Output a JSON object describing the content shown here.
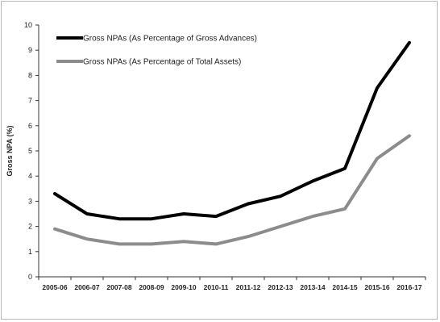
{
  "chart_data": {
    "type": "line",
    "title": "",
    "xlabel": "",
    "ylabel": "Gross NPA (%)",
    "ylim": [
      0,
      10
    ],
    "yticks": [
      "0",
      "1",
      "2",
      "3",
      "4",
      "5",
      "6",
      "7",
      "8",
      "9",
      "10"
    ],
    "categories": [
      "2005-06",
      "2006-07",
      "2007-08",
      "2008-09",
      "2009-10",
      "2010-11",
      "2011-12",
      "2012-13",
      "2013-14",
      "2014-15",
      "2015-16",
      "2016-17"
    ],
    "grid": false,
    "legend_position": "top-left",
    "series": [
      {
        "name": "Gross NPAs (As Percentage of Gross Advances)",
        "color": "#000000",
        "values": [
          3.3,
          2.5,
          2.3,
          2.3,
          2.5,
          2.4,
          2.9,
          3.2,
          3.8,
          4.3,
          7.5,
          9.3
        ]
      },
      {
        "name": "Gross NPAs (As Percentage of Total Assets)",
        "color": "#8c8c8c",
        "values": [
          1.9,
          1.5,
          1.3,
          1.3,
          1.4,
          1.3,
          1.6,
          2.0,
          2.4,
          2.7,
          4.7,
          5.6
        ]
      }
    ]
  }
}
